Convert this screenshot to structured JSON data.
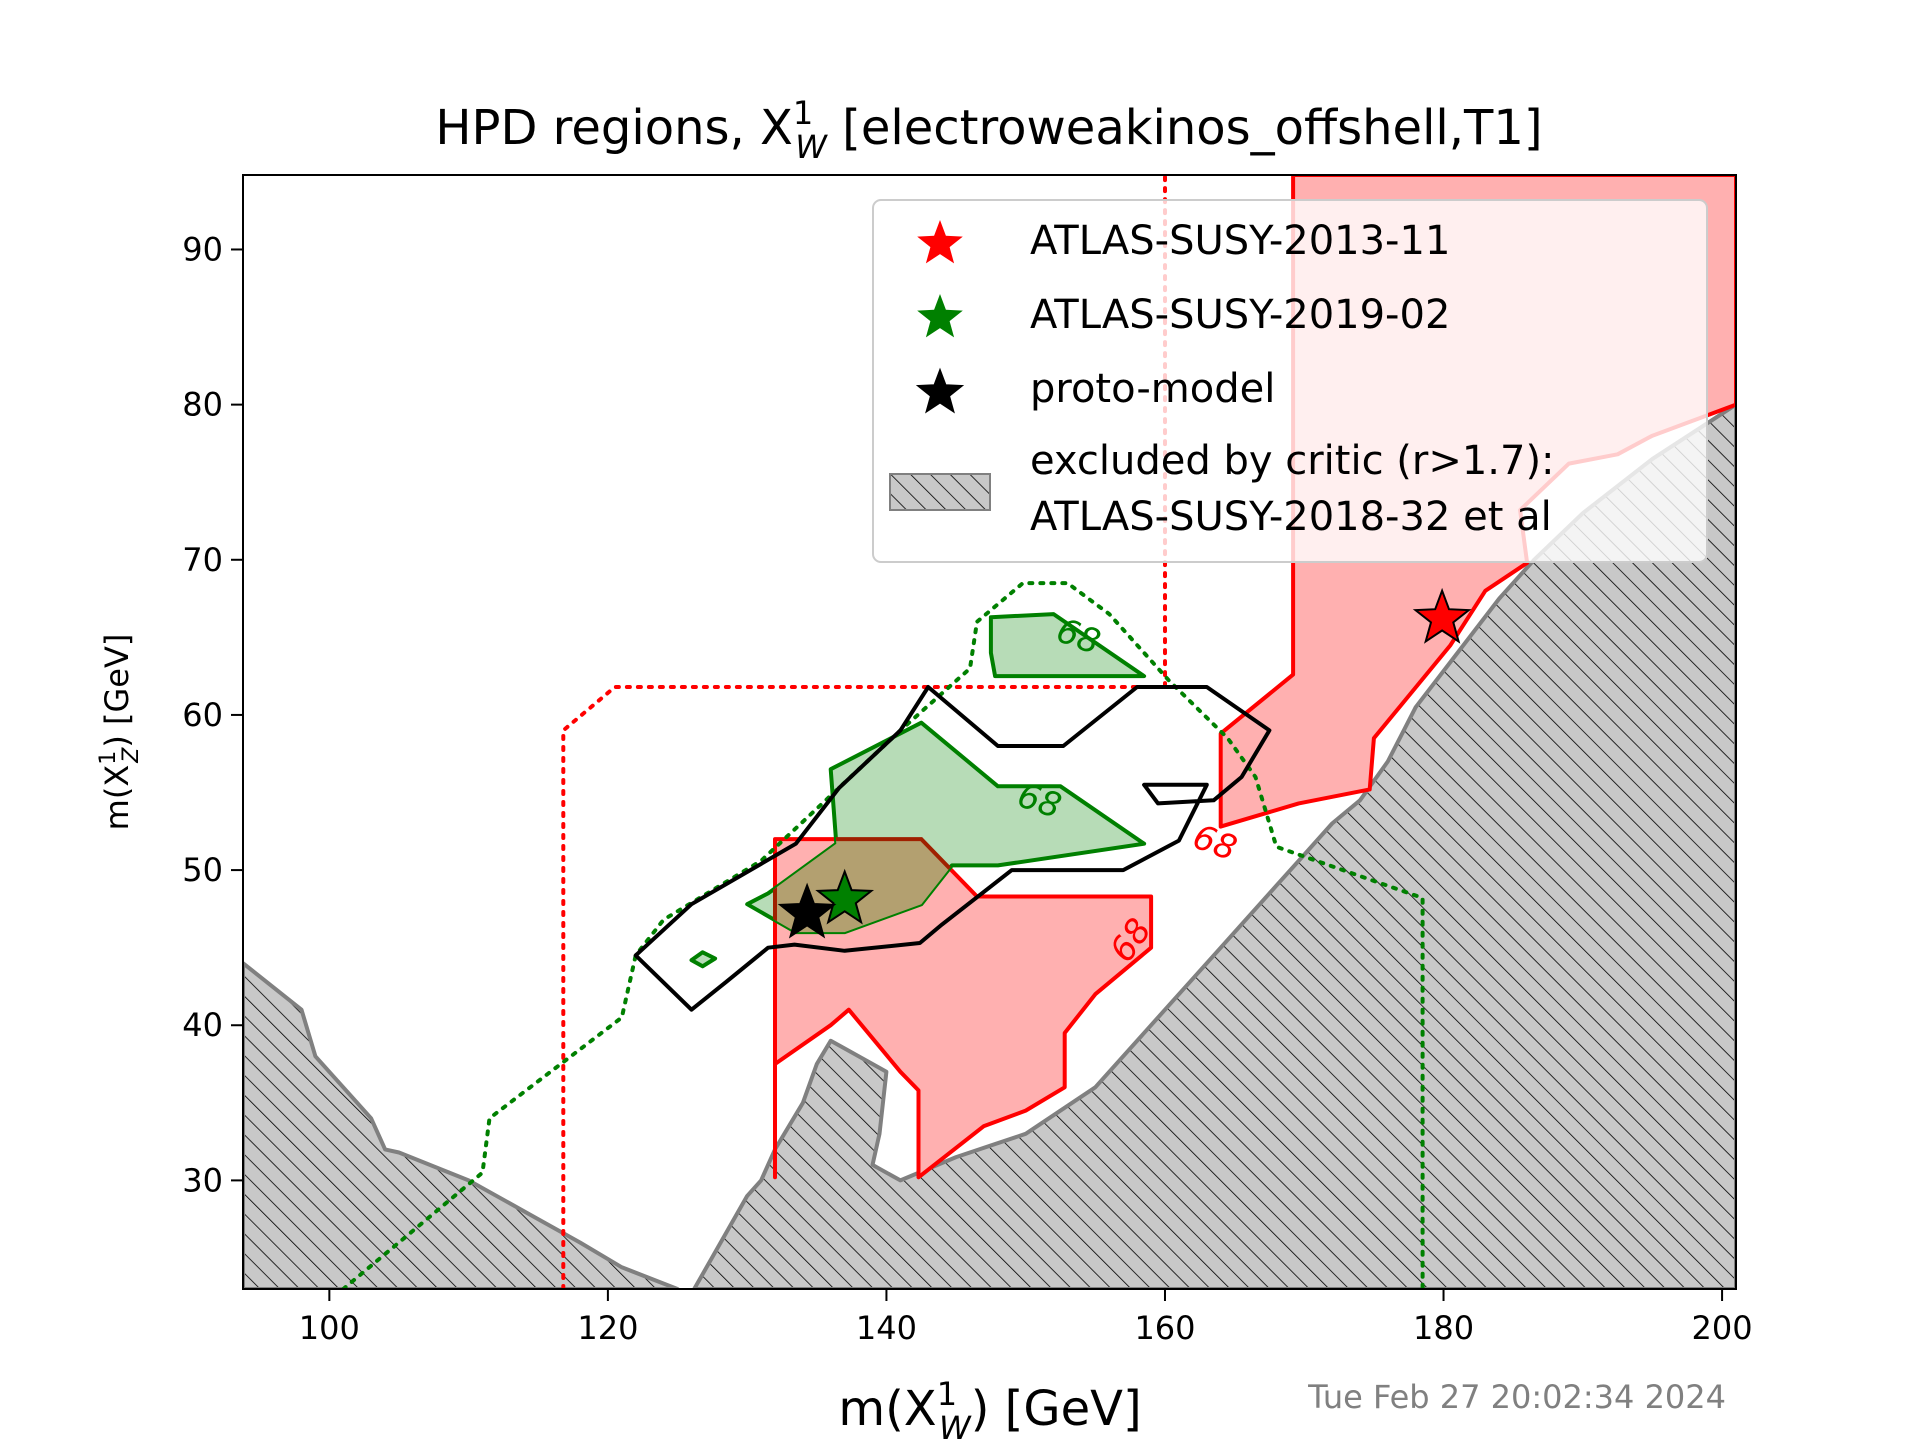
{
  "chart_data": {
    "type": "contour",
    "title": "HPD regions, X",
    "title_sup": "1",
    "title_sub": "W",
    "title_tail": " [electroweakinos_offshell,T1]",
    "xlabel": {
      "main": "m(X",
      "sup": "1",
      "sub": "W",
      "tail": ") [GeV]"
    },
    "ylabel": {
      "main": "m(X",
      "sup": "1",
      "sub": "Z",
      "tail": ") [GeV]"
    },
    "xlim": [
      93.8,
      201
    ],
    "ylim": [
      23,
      94.8
    ],
    "xticks": [
      100,
      120,
      140,
      160,
      180,
      200
    ],
    "yticks": [
      30,
      40,
      50,
      60,
      70,
      80,
      90
    ],
    "timestamp": "Tue Feb 27 20:02:34 2024",
    "legend": {
      "placement": "upper-right",
      "entries": [
        {
          "label": "ATLAS-SUSY-2013-11",
          "marker": "star",
          "color": "#ff0000"
        },
        {
          "label": "ATLAS-SUSY-2019-02",
          "marker": "star",
          "color": "#008000"
        },
        {
          "label": "proto-model",
          "marker": "star",
          "color": "#000000"
        },
        {
          "label_line1": "excluded by critic (r>1.7):",
          "label_line2": "ATLAS-SUSY-2018-32 et al",
          "marker": "hatch",
          "color": "#c8c8c8"
        }
      ]
    },
    "colors": {
      "red": "#ff0000",
      "red_fill": "#ffb0b0",
      "green": "#008000",
      "green_fill": "#b3dab3",
      "overlap_fill": "#b3a070",
      "black": "#000000",
      "excluded_fill": "#c8c8c8",
      "excluded_edge": "#808080"
    },
    "excluded_regions": [
      [
        [
          93.8,
          44
        ],
        [
          98,
          41
        ],
        [
          99,
          38
        ],
        [
          100,
          37
        ],
        [
          102,
          35
        ],
        [
          103,
          34
        ],
        [
          104,
          32
        ],
        [
          105,
          31.8
        ],
        [
          110,
          30
        ],
        [
          115,
          27.5
        ],
        [
          118,
          26
        ],
        [
          121,
          24.4
        ],
        [
          125,
          23
        ],
        [
          93.8,
          23
        ]
      ],
      [
        [
          126.2,
          23
        ],
        [
          130,
          29
        ],
        [
          131,
          30
        ],
        [
          132,
          32
        ],
        [
          134,
          35
        ],
        [
          135,
          37.5
        ],
        [
          136,
          39
        ],
        [
          137,
          38.5
        ],
        [
          139,
          37.5
        ],
        [
          140,
          37
        ],
        [
          139.5,
          33
        ],
        [
          139,
          31
        ],
        [
          141,
          30
        ],
        [
          145,
          31.5
        ],
        [
          150,
          33
        ],
        [
          155,
          36
        ],
        [
          160,
          41
        ],
        [
          164,
          45
        ],
        [
          168,
          49
        ],
        [
          170,
          51
        ],
        [
          172,
          53
        ],
        [
          174,
          54.5
        ],
        [
          176,
          57
        ],
        [
          178,
          60.5
        ],
        [
          181,
          64
        ],
        [
          184,
          67.5
        ],
        [
          186.5,
          70
        ],
        [
          190,
          73
        ],
        [
          195,
          76.5
        ],
        [
          201,
          80
        ],
        [
          201,
          23
        ]
      ]
    ],
    "markers": [
      {
        "series": "ATLAS-SUSY-2013-11",
        "x": 179.9,
        "y": 66.2,
        "color": "#ff0000"
      },
      {
        "series": "ATLAS-SUSY-2019-02",
        "x": 137,
        "y": 48.1,
        "color": "#008000"
      },
      {
        "series": "proto-model",
        "x": 134.3,
        "y": 47.2,
        "color": "#000000"
      }
    ],
    "contours": {
      "red_68_regions": [
        [
          [
            169.2,
            94.8
          ],
          [
            169.2,
            62.6
          ],
          [
            164,
            58.8
          ],
          [
            164,
            52.8
          ],
          [
            169.6,
            54.3
          ],
          [
            174.7,
            55.2
          ],
          [
            175,
            58.5
          ],
          [
            180.5,
            64.5
          ],
          [
            183,
            68
          ],
          [
            186,
            69.8
          ],
          [
            185.5,
            73.2
          ],
          [
            189,
            76.2
          ],
          [
            192.5,
            76.8
          ],
          [
            195,
            78
          ],
          [
            201,
            80
          ],
          [
            201,
            94.8
          ]
        ],
        [
          [
            132,
            30.2
          ],
          [
            132,
            52
          ],
          [
            142.5,
            52
          ],
          [
            146.5,
            48.3
          ],
          [
            159,
            48.3
          ],
          [
            159,
            45
          ],
          [
            155,
            42
          ],
          [
            152.8,
            39.5
          ],
          [
            152.8,
            36
          ],
          [
            150,
            34.5
          ],
          [
            147,
            33.5
          ],
          [
            142.3,
            30.2
          ],
          [
            142.3,
            35.8
          ],
          [
            141,
            37
          ],
          [
            137.3,
            41
          ],
          [
            136,
            40
          ],
          [
            132,
            37.5
          ]
        ]
      ],
      "red_dotted": [
        [
          116.8,
          23
        ],
        [
          116.8,
          59
        ],
        [
          120.5,
          61.8
        ],
        [
          160,
          61.8
        ],
        [
          160,
          94.8
        ]
      ],
      "green_68_regions": [
        [
          [
            147.5,
            66.3
          ],
          [
            152,
            66.5
          ],
          [
            158.5,
            62.5
          ],
          [
            147.8,
            62.5
          ],
          [
            147.5,
            64
          ]
        ],
        [
          [
            136,
            56.5
          ],
          [
            142.5,
            59.5
          ],
          [
            148,
            55.4
          ],
          [
            152.5,
            55.4
          ],
          [
            158.5,
            51.7
          ],
          [
            148,
            50.3
          ],
          [
            144.7,
            50.3
          ],
          [
            142.5,
            47.8
          ],
          [
            137,
            46
          ],
          [
            133.5,
            46
          ],
          [
            130,
            47.8
          ],
          [
            131.5,
            48.5
          ],
          [
            136.4,
            51.7
          ]
        ],
        [
          [
            126,
            44.2
          ],
          [
            126.8,
            44.7
          ],
          [
            127.7,
            44.3
          ],
          [
            126.8,
            43.8
          ]
        ]
      ],
      "green_dotted": [
        [
          101,
          23
        ],
        [
          111,
          30.5
        ],
        [
          111.5,
          34
        ],
        [
          121,
          40.5
        ],
        [
          122,
          44.5
        ],
        [
          124,
          46.8
        ],
        [
          131,
          50.6
        ],
        [
          141,
          59
        ],
        [
          146,
          63
        ],
        [
          146.5,
          66
        ],
        [
          149.8,
          68.5
        ],
        [
          153,
          68.5
        ],
        [
          156,
          66.5
        ],
        [
          160.3,
          62.2
        ],
        [
          164.5,
          58.5
        ],
        [
          166.5,
          56
        ],
        [
          168,
          51.5
        ],
        [
          178.5,
          48.2
        ],
        [
          178.5,
          23
        ]
      ],
      "black_contours": [
        [
          [
            122,
            44.5
          ],
          [
            126,
            47.8
          ],
          [
            133.5,
            51.7
          ],
          [
            136.6,
            55.3
          ],
          [
            141,
            59
          ],
          [
            143,
            61.8
          ],
          [
            148,
            58
          ],
          [
            152.7,
            58
          ],
          [
            158,
            61.8
          ],
          [
            163,
            61.8
          ],
          [
            167.5,
            59
          ],
          [
            165.5,
            56
          ],
          [
            163.5,
            54.5
          ],
          [
            159.5,
            54.3
          ],
          [
            158.5,
            55.5
          ],
          [
            163,
            55.5
          ],
          [
            161,
            51.9
          ],
          [
            157,
            50
          ],
          [
            149,
            50
          ],
          [
            144,
            46.5
          ],
          [
            142.4,
            45.3
          ],
          [
            137,
            44.8
          ],
          [
            133.4,
            45.2
          ],
          [
            131.5,
            45
          ],
          [
            128.5,
            42.8
          ],
          [
            126,
            41
          ]
        ]
      ],
      "labels": [
        {
          "text": "68",
          "x": 153.8,
          "y": 65.1,
          "color": "#008000",
          "rotate": 20
        },
        {
          "text": "68",
          "x": 151,
          "y": 54.5,
          "color": "#008000",
          "rotate": 18
        },
        {
          "text": "68",
          "x": 163.6,
          "y": 51.8,
          "color": "#ff0000",
          "rotate": 20
        },
        {
          "text": "68",
          "x": 157.5,
          "y": 45.5,
          "color": "#ff0000",
          "rotate": -55
        }
      ]
    }
  }
}
